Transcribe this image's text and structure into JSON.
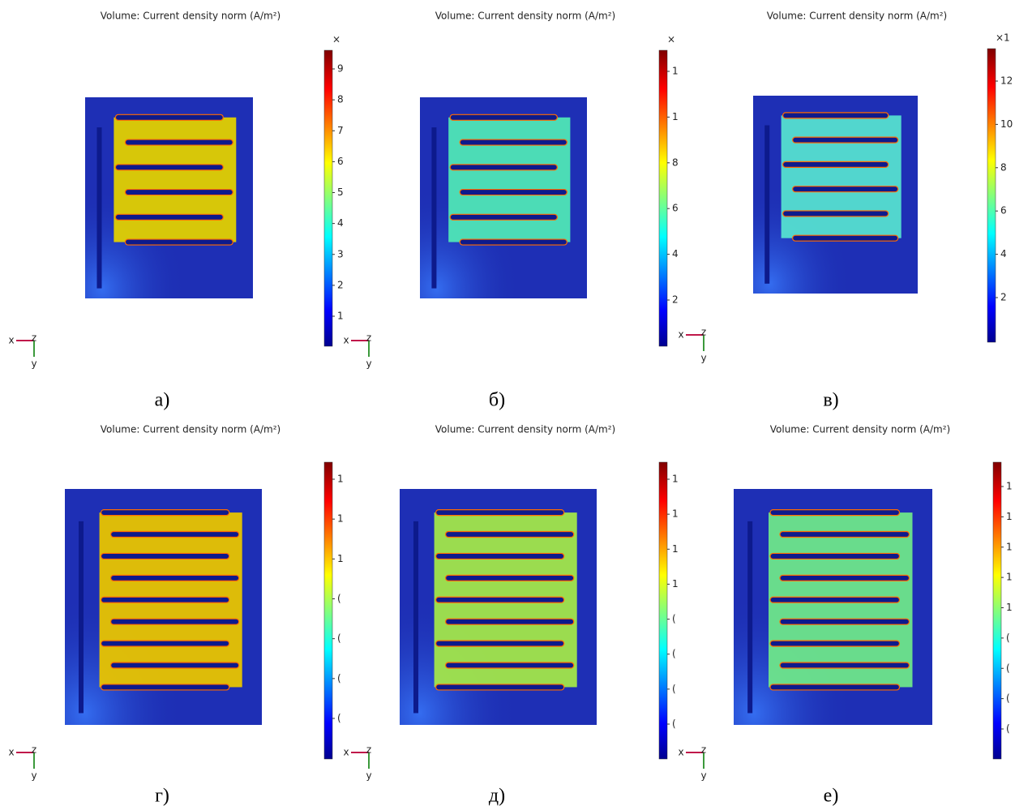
{
  "panels": [
    {
      "title": "Volume: Current density norm (A/m²)",
      "color": "#e2d000",
      "colorbar_top": "×",
      "colorbar_labels": [
        "9",
        "8",
        "7",
        "6",
        "5",
        "4",
        "3",
        "2",
        "1"
      ],
      "axes": [
        "x",
        "z",
        "y"
      ],
      "caption": "а)"
    },
    {
      "title": "Volume: Current density norm (A/m²)",
      "color": "#4fe6b6",
      "colorbar_top": "×",
      "colorbar_labels": [
        "1",
        "1",
        "8",
        "6",
        "4",
        "2"
      ],
      "axes": [
        "x",
        "z",
        "y"
      ],
      "caption": "б)"
    },
    {
      "title": "Volume: Current density norm (A/m²)",
      "color": "#55dfd0",
      "colorbar_top": "×1",
      "colorbar_labels": [
        "12",
        "10",
        "8",
        "6",
        "4",
        "2"
      ],
      "axes": [
        "x",
        "z",
        "y"
      ],
      "caption": "в)"
    },
    {
      "title": "Volume: Current density norm (A/m²)",
      "color": "#e8c400",
      "colorbar_labels": [
        "1",
        "1",
        "1",
        "(",
        "(",
        "(",
        "("
      ],
      "axes": [
        "x",
        "z",
        "y"
      ],
      "caption": "г)"
    },
    {
      "title": "Volume: Current density norm (A/m²)",
      "color": "#a2e64a",
      "colorbar_labels": [
        "1",
        "1",
        "1",
        "1",
        "(",
        "(",
        "(",
        "("
      ],
      "axes": [
        "x",
        "z",
        "y"
      ],
      "caption": "д)"
    },
    {
      "title": "Volume: Current density norm (A/m²)",
      "color": "#6ee68a",
      "colorbar_labels": [
        "1",
        "1",
        "1",
        "1",
        "1",
        "(",
        "(",
        "(",
        "("
      ],
      "axes": [
        "x",
        "z",
        "y"
      ],
      "caption": "е)"
    }
  ]
}
